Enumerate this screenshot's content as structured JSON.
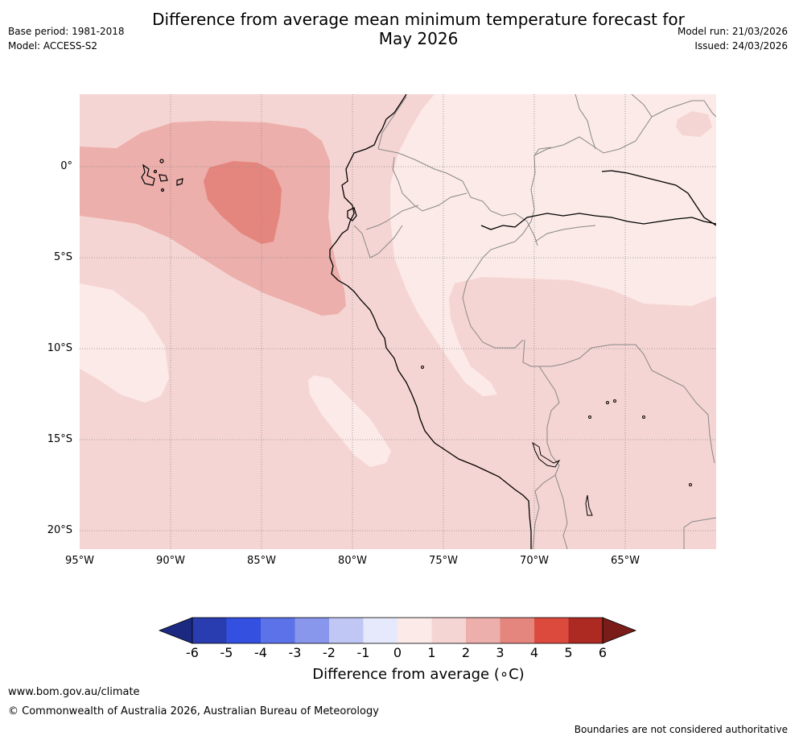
{
  "header": {
    "title_line1": "Difference from average mean minimum temperature forecast for",
    "title_line2": "May 2026",
    "base_period": "Base period: 1981-2018",
    "model": "Model: ACCESS-S2",
    "model_run": "Model run: 21/03/2026",
    "issued": "Issued: 24/03/2026"
  },
  "map": {
    "lat_labels": [
      "0°",
      "5°S",
      "10°S",
      "15°S",
      "20°S"
    ],
    "lon_labels": [
      "95°W",
      "90°W",
      "85°W",
      "80°W",
      "75°W",
      "70°W",
      "65°W"
    ]
  },
  "colorbar": {
    "title": "Difference from average (∘C)",
    "tick_labels": [
      "-6",
      "-5",
      "-4",
      "-3",
      "-2",
      "-1",
      "0",
      "1",
      "2",
      "3",
      "4",
      "5",
      "6"
    ],
    "colors": [
      "#1b2a80",
      "#2a3db0",
      "#3350e0",
      "#5c72e8",
      "#8896ec",
      "#c0c7f4",
      "#e6e9fb",
      "#fbeae8",
      "#f5d5d3",
      "#ecafab",
      "#e5867e",
      "#dc4a3e",
      "#ad2a22",
      "#7a1c18"
    ]
  },
  "footer": {
    "website": "www.bom.gov.au/climate",
    "copyright": "© Commonwealth of Australia 2026, Australian Bureau of Meteorology",
    "disclaimer": "Boundaries are not considered authoritative"
  }
}
